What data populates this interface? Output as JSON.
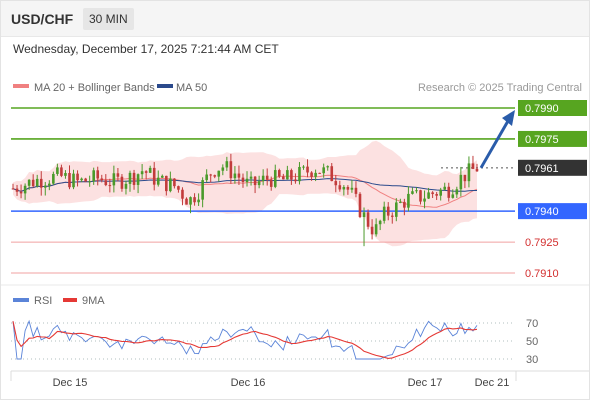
{
  "header": {
    "symbol": "USD/CHF",
    "timeframe": "30 MIN"
  },
  "datetime": "Wednesday, December 17, 2025 7:21:44 AM CET",
  "legend": {
    "ma20": "MA 20 + Bollinger Bands",
    "ma50": "MA 50",
    "ma20_color": "#f08080",
    "ma50_color": "#2b4a8c"
  },
  "credit": "Research © 2025 Trading Central",
  "rsi_legend": {
    "rsi": "RSI",
    "ma": "9MA",
    "rsi_color": "#5b84d8",
    "ma_color": "#e53935"
  },
  "chart_data": [
    {
      "type": "candlestick",
      "title": "USD/CHF",
      "ylim": [
        0.7905,
        0.8
      ],
      "x_ticks": [
        "Dec 15",
        "Dec 16",
        "Dec 17",
        "Dec 21"
      ],
      "price_levels": [
        {
          "value": "0.7990",
          "kind": "resistance",
          "color": "#57a520"
        },
        {
          "value": "0.7975",
          "kind": "resistance",
          "color": "#57a520"
        },
        {
          "value": "0.7961",
          "kind": "current",
          "color": "#333333"
        },
        {
          "value": "0.7940",
          "kind": "pivot",
          "color": "#3366ff"
        },
        {
          "value": "0.7925",
          "kind": "support",
          "color": "#e05050"
        },
        {
          "value": "0.7910",
          "kind": "support",
          "color": "#e05050"
        }
      ],
      "forecast_target": 0.799,
      "series": [
        {
          "name": "MA 20 + Bollinger Bands"
        },
        {
          "name": "MA 50"
        }
      ],
      "colors": {
        "up": "#4a9a2a",
        "down": "#c23b3b",
        "bands": "#fbd9d9"
      }
    },
    {
      "type": "line",
      "title": "RSI",
      "ylim": [
        20,
        80
      ],
      "y_ticks": [
        "70",
        "50",
        "30"
      ],
      "series": [
        {
          "name": "RSI"
        },
        {
          "name": "9MA"
        }
      ]
    }
  ]
}
